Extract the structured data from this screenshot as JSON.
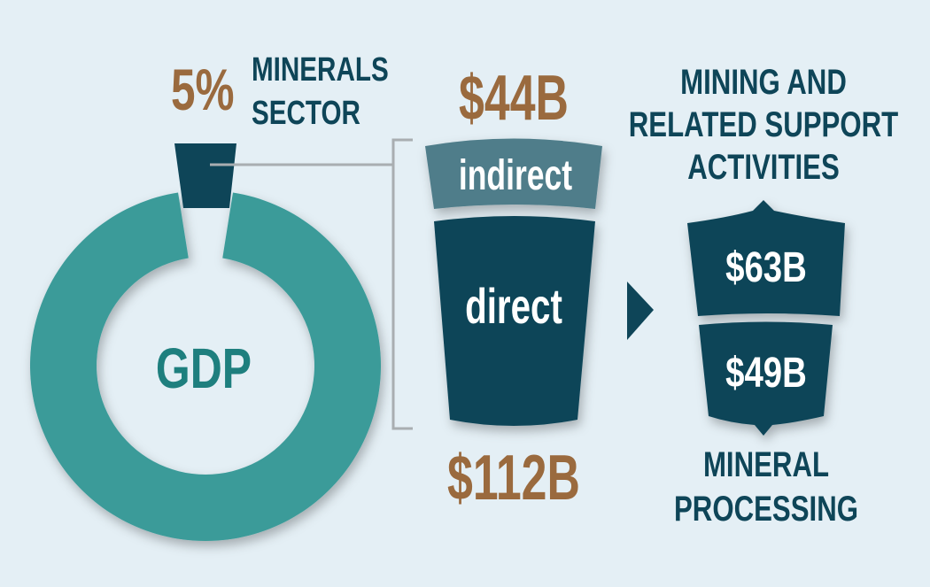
{
  "chart_data": {
    "type": "donut",
    "gdp": {
      "center_label": "GDP",
      "minerals_share_percent": 5,
      "share_label": "5%",
      "sector_label_line1": "MINERALS",
      "sector_label_line2": "SECTOR"
    },
    "minerals_sector_breakdown": {
      "indirect": {
        "label": "indirect",
        "value_billion": 44,
        "value_label": "$44B"
      },
      "direct": {
        "label": "direct",
        "value_billion": 112,
        "value_label": "$112B"
      }
    },
    "direct_breakdown": {
      "mining": {
        "value_billion": 63,
        "value_label": "$63B",
        "label_lines": [
          "MINING AND",
          "RELATED SUPPORT",
          "ACTIVITIES"
        ]
      },
      "processing": {
        "value_billion": 49,
        "value_label": "$49B",
        "label_lines": [
          "MINERAL",
          "PROCESSING"
        ]
      }
    },
    "colors": {
      "background": "#e4eff5",
      "gdp_ring": "#3a9b99",
      "gdp_text": "#1e7f7e",
      "navy": "#0e4558",
      "indirect": "#4f7d8a",
      "gold": "#9a6a3e",
      "connector": "#a9aeb1"
    }
  }
}
